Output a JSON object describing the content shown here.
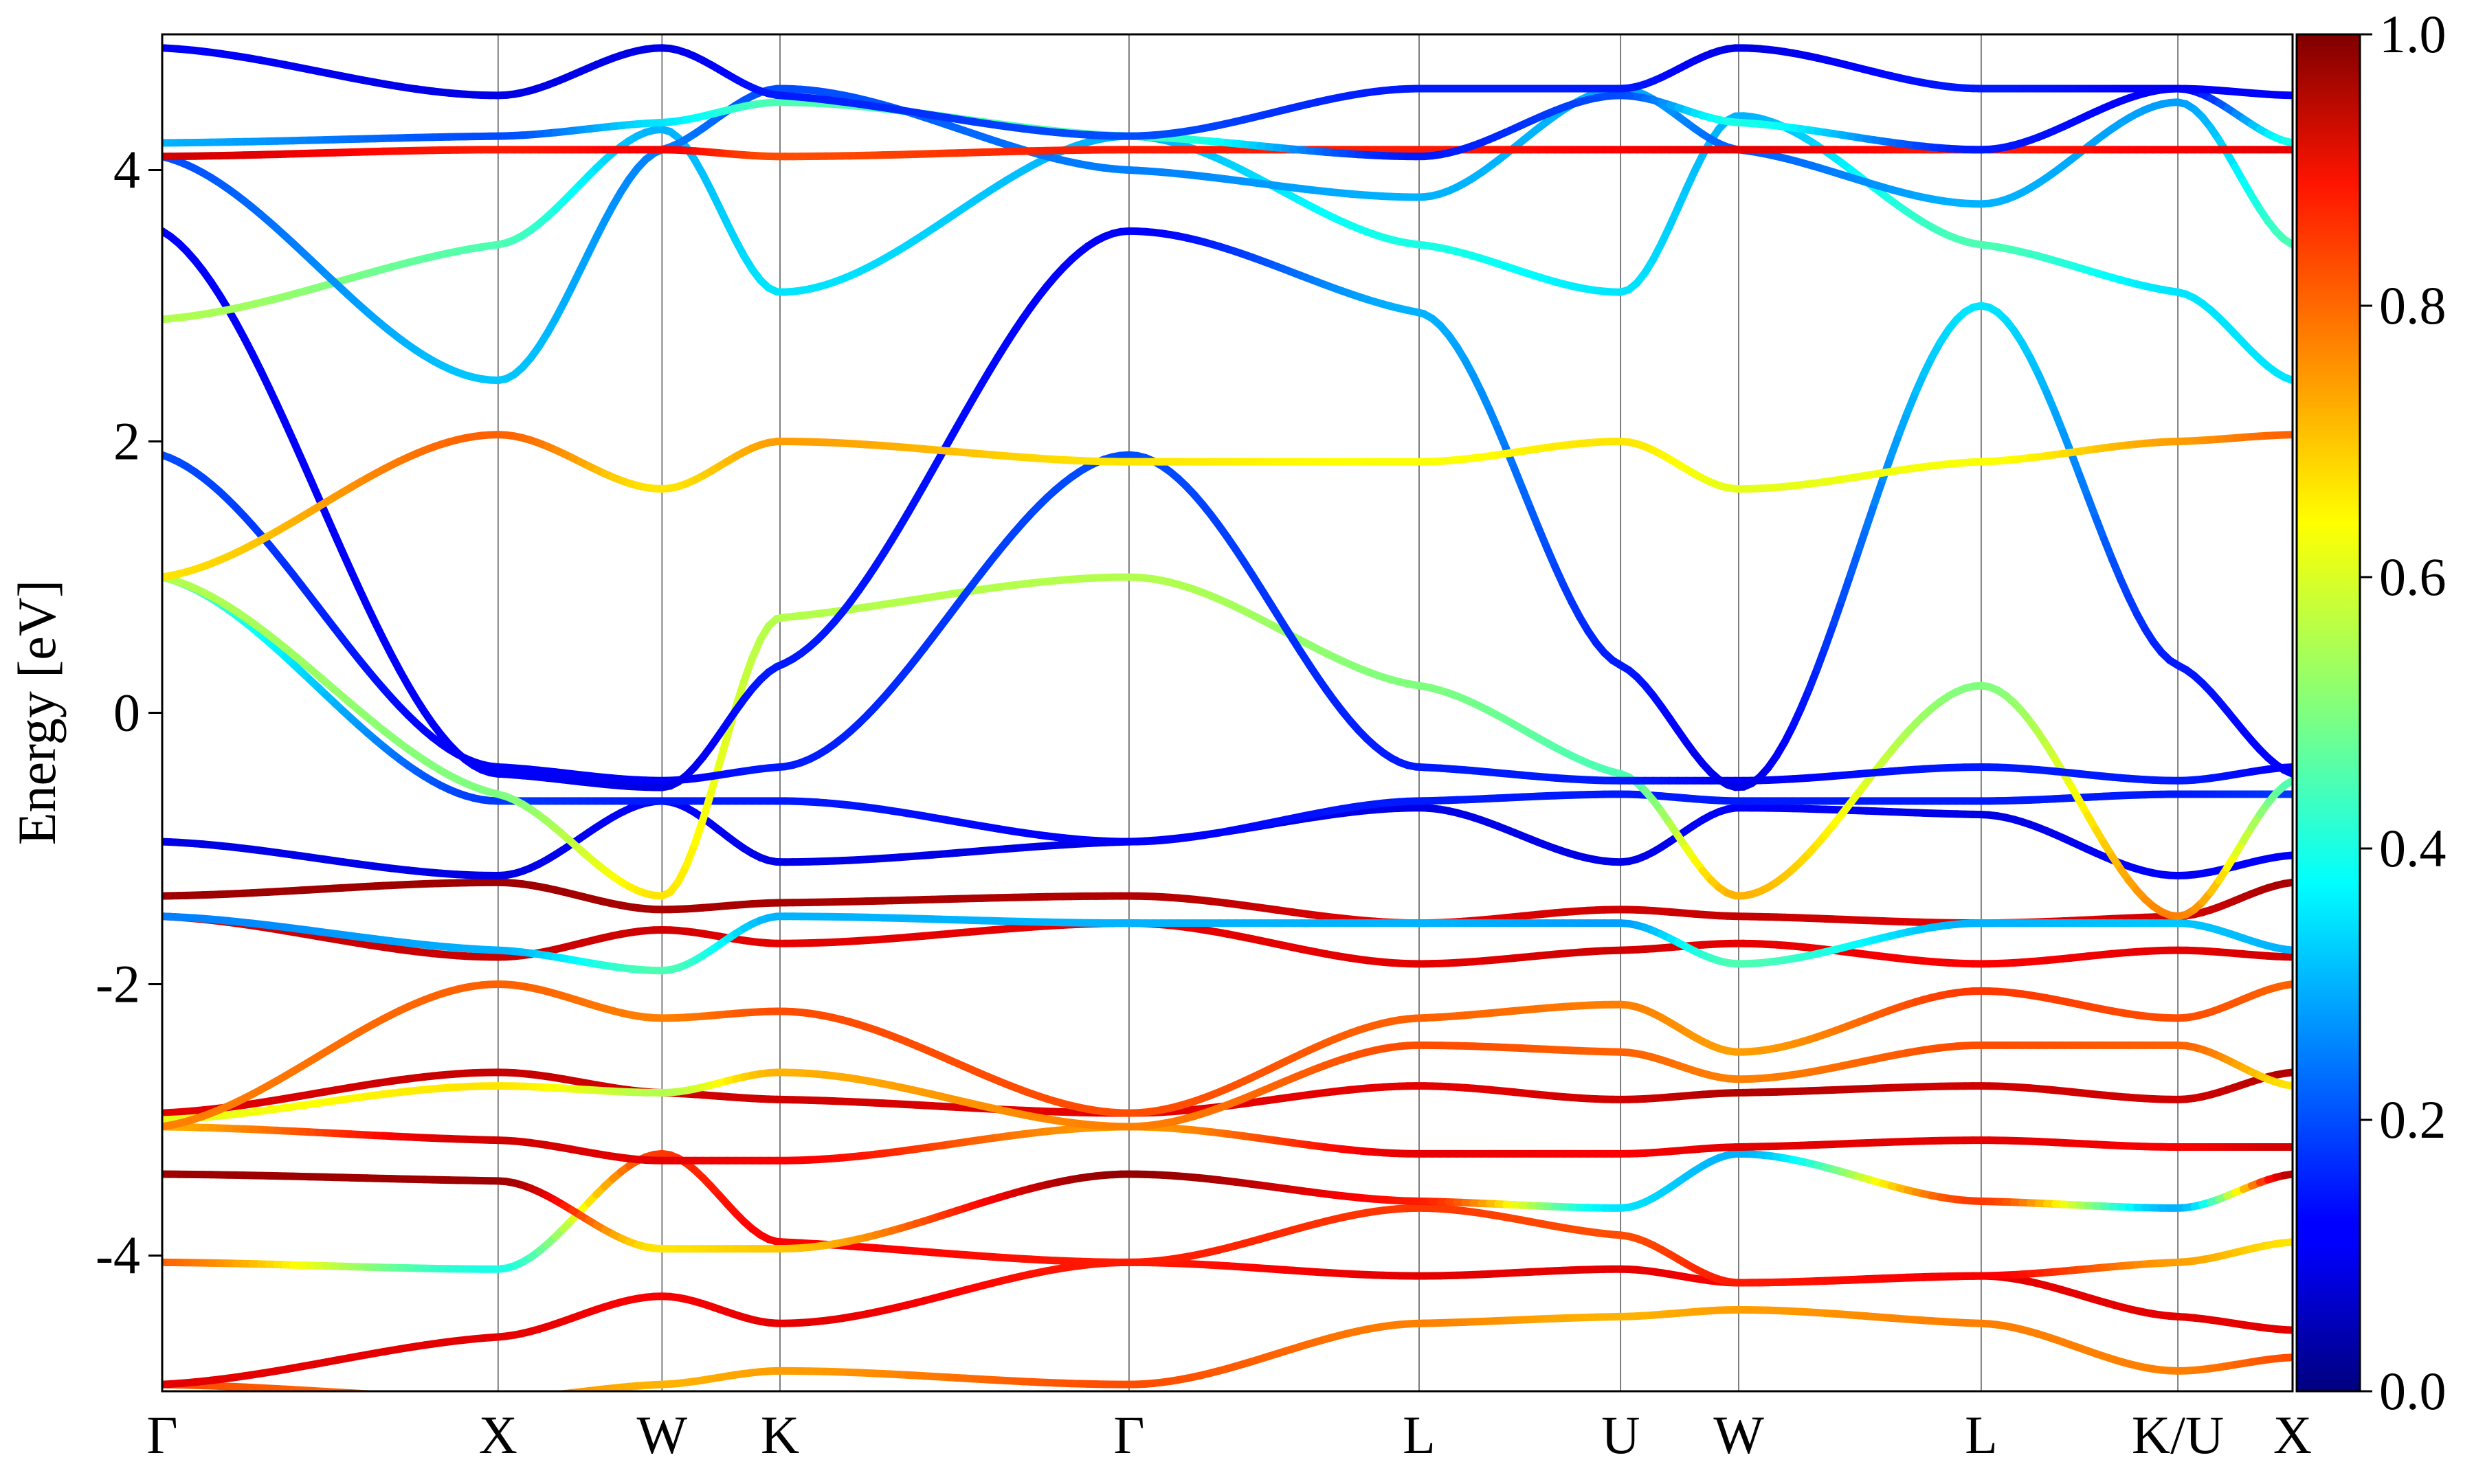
{
  "chart_data": {
    "type": "line",
    "title": "",
    "xlabel": "",
    "ylabel": "Energy [eV]",
    "ylim": [
      -5,
      5
    ],
    "yticks": [
      -4,
      -2,
      0,
      2,
      4
    ],
    "ytick_labels": [
      "-4",
      "-2",
      "0",
      "2",
      "4"
    ],
    "xlim": [
      0,
      13
    ],
    "high_symmetry_points": [
      {
        "label": "Γ",
        "x": 0
      },
      {
        "label": "X",
        "x": 2.05
      },
      {
        "label": "W",
        "x": 3.05
      },
      {
        "label": "K",
        "x": 3.77
      },
      {
        "label": "Γ",
        "x": 5.9
      },
      {
        "label": "L",
        "x": 7.67
      },
      {
        "label": "U",
        "x": 8.9
      },
      {
        "label": "W",
        "x": 9.62
      },
      {
        "label": "L",
        "x": 11.1
      },
      {
        "label": "K/U",
        "x": 12.3
      },
      {
        "label": "X",
        "x": 13.0
      }
    ],
    "colorbar": {
      "colormap": "jet",
      "range": [
        0,
        1
      ],
      "ticks": [
        0.0,
        0.2,
        0.4,
        0.6,
        0.8,
        1.0
      ],
      "tick_labels": [
        "0.0",
        "0.2",
        "0.4",
        "0.6",
        "0.8",
        "1.0"
      ]
    },
    "grid": false,
    "series": [
      {
        "x": [
          0,
          2.05,
          3.05,
          3.77,
          5.9,
          7.67,
          8.9,
          9.62,
          11.1,
          12.3,
          13.0
        ],
        "y": [
          -4.95,
          -5.05,
          -4.95,
          -4.85,
          -4.95,
          -4.5,
          -4.45,
          -4.4,
          -4.5,
          -4.85,
          -4.75
        ],
        "c": [
          0.8,
          0.75,
          0.7,
          0.72,
          0.8,
          0.75,
          0.7,
          0.72,
          0.75,
          0.75,
          0.8
        ]
      },
      {
        "x": [
          0,
          2.05,
          3.05,
          3.77,
          5.9,
          7.67,
          8.9,
          9.62,
          11.1,
          12.3,
          13.0
        ],
        "y": [
          -4.95,
          -4.6,
          -4.3,
          -4.5,
          -4.05,
          -4.15,
          -4.1,
          -4.2,
          -4.15,
          -4.45,
          -4.55
        ],
        "c": [
          0.9,
          0.9,
          0.88,
          0.9,
          0.85,
          0.9,
          0.9,
          0.88,
          0.9,
          0.9,
          0.9
        ]
      },
      {
        "x": [
          0,
          2.05,
          3.05,
          3.77,
          5.9,
          7.67,
          8.9,
          9.62,
          11.1,
          12.3,
          13.0
        ],
        "y": [
          -4.05,
          -4.1,
          -3.25,
          -3.9,
          -4.05,
          -3.65,
          -3.85,
          -4.2,
          -4.15,
          -4.05,
          -3.9
        ],
        "c": [
          0.78,
          0.4,
          0.82,
          0.88,
          0.85,
          0.82,
          0.8,
          0.85,
          0.88,
          0.72,
          0.65
        ]
      },
      {
        "x": [
          0,
          2.05,
          3.05,
          3.77,
          5.9,
          7.67,
          8.9,
          9.62,
          11.1,
          12.3,
          13.0
        ],
        "y": [
          -3.4,
          -3.45,
          -3.95,
          -3.95,
          -3.4,
          -3.6,
          -3.65,
          -3.25,
          -3.6,
          -3.65,
          -3.4
        ],
        "c": [
          0.97,
          0.97,
          0.65,
          0.68,
          0.98,
          0.85,
          0.35,
          0.3,
          0.82,
          0.3,
          0.95
        ]
      },
      {
        "x": [
          0,
          2.05,
          3.05,
          3.77,
          5.9,
          7.67,
          8.9,
          9.62,
          11.1,
          12.3,
          13.0
        ],
        "y": [
          -3.05,
          -3.15,
          -3.3,
          -3.3,
          -3.05,
          -3.25,
          -3.25,
          -3.2,
          -3.15,
          -3.2,
          -3.2
        ],
        "c": [
          0.7,
          0.92,
          0.9,
          0.88,
          0.72,
          0.9,
          0.88,
          0.9,
          0.9,
          0.88,
          0.92
        ]
      },
      {
        "x": [
          0,
          2.05,
          3.05,
          3.77,
          5.9,
          7.67,
          8.9,
          9.62,
          11.1,
          12.3,
          13.0
        ],
        "y": [
          -2.95,
          -2.65,
          -2.8,
          -2.85,
          -2.95,
          -2.75,
          -2.85,
          -2.8,
          -2.75,
          -2.85,
          -2.65
        ],
        "c": [
          0.9,
          0.93,
          0.92,
          0.92,
          0.9,
          0.9,
          0.92,
          0.95,
          0.92,
          0.92,
          0.95
        ]
      },
      {
        "x": [
          0,
          2.05,
          3.05,
          3.77,
          5.9,
          7.67,
          8.9,
          9.62,
          11.1,
          12.3,
          13.0
        ],
        "y": [
          -3.0,
          -2.75,
          -2.8,
          -2.65,
          -3.05,
          -2.45,
          -2.5,
          -2.7,
          -2.45,
          -2.45,
          -2.75
        ],
        "c": [
          0.6,
          0.65,
          0.55,
          0.7,
          0.75,
          0.8,
          0.78,
          0.75,
          0.8,
          0.78,
          0.65
        ]
      },
      {
        "x": [
          0,
          2.05,
          3.05,
          3.77,
          5.9,
          7.67,
          8.9,
          9.62,
          11.1,
          12.3,
          13.0
        ],
        "y": [
          -3.05,
          -2.0,
          -2.25,
          -2.2,
          -2.95,
          -2.25,
          -2.15,
          -2.5,
          -2.05,
          -2.25,
          -2.0
        ],
        "c": [
          0.75,
          0.78,
          0.75,
          0.8,
          0.8,
          0.78,
          0.75,
          0.72,
          0.82,
          0.8,
          0.78
        ]
      },
      {
        "x": [
          0,
          2.05,
          3.05,
          3.77,
          5.9,
          7.67,
          8.9,
          9.62,
          11.1,
          12.3,
          13.0
        ],
        "y": [
          -1.5,
          -1.8,
          -1.6,
          -1.7,
          -1.55,
          -1.85,
          -1.75,
          -1.7,
          -1.85,
          -1.75,
          -1.8
        ],
        "c": [
          0.92,
          0.93,
          0.92,
          0.9,
          0.9,
          0.9,
          0.92,
          0.9,
          0.88,
          0.9,
          0.92
        ]
      },
      {
        "x": [
          0,
          2.05,
          3.05,
          3.77,
          5.9,
          7.67,
          8.9,
          9.62,
          11.1,
          12.3,
          13.0
        ],
        "y": [
          -1.35,
          -1.25,
          -1.45,
          -1.4,
          -1.35,
          -1.55,
          -1.45,
          -1.5,
          -1.55,
          -1.5,
          -1.25
        ],
        "c": [
          0.97,
          0.97,
          0.96,
          0.96,
          0.95,
          0.9,
          0.92,
          0.93,
          0.9,
          0.92,
          0.96
        ]
      },
      {
        "x": [
          0,
          2.05,
          3.05,
          3.77,
          5.9,
          7.67,
          8.9,
          9.62,
          11.1,
          12.3,
          13.0
        ],
        "y": [
          -1.5,
          -1.75,
          -1.9,
          -1.5,
          -1.55,
          -1.55,
          -1.55,
          -1.85,
          -1.55,
          -1.55,
          -1.75
        ],
        "c": [
          0.25,
          0.3,
          0.45,
          0.3,
          0.3,
          0.3,
          0.28,
          0.45,
          0.3,
          0.32,
          0.3
        ]
      },
      {
        "x": [
          0,
          2.05,
          3.05,
          3.77,
          5.9,
          7.67,
          8.9,
          9.62,
          11.1,
          12.3,
          13.0
        ],
        "y": [
          -0.95,
          -1.2,
          -0.65,
          -1.1,
          -0.95,
          -0.7,
          -1.1,
          -0.7,
          -0.75,
          -1.2,
          -1.05
        ],
        "c": [
          0.1,
          0.1,
          0.12,
          0.1,
          0.1,
          0.1,
          0.1,
          0.12,
          0.1,
          0.12,
          0.12
        ]
      },
      {
        "x": [
          0,
          2.05,
          3.05,
          3.77,
          5.9,
          7.67,
          8.9,
          9.62,
          11.1,
          12.3,
          13.0
        ],
        "y": [
          1.0,
          -0.65,
          -0.65,
          -0.65,
          -0.95,
          -0.65,
          -0.6,
          -0.65,
          -0.65,
          -0.6,
          -0.6
        ],
        "c": [
          0.45,
          0.18,
          0.15,
          0.15,
          0.12,
          0.15,
          0.15,
          0.15,
          0.15,
          0.15,
          0.18
        ]
      },
      {
        "x": [
          0,
          2.05,
          3.05,
          3.77,
          5.9,
          7.67,
          8.9,
          9.62,
          11.1,
          12.3,
          13.0
        ],
        "y": [
          1.0,
          -0.6,
          -1.35,
          0.7,
          1.0,
          0.2,
          -0.45,
          -1.35,
          0.2,
          -1.5,
          -0.5
        ],
        "c": [
          0.55,
          0.5,
          0.65,
          0.55,
          0.55,
          0.5,
          0.45,
          0.7,
          0.5,
          0.75,
          0.45
        ]
      },
      {
        "x": [
          0,
          2.05,
          3.05,
          3.77,
          5.9,
          7.67,
          8.9,
          9.62,
          11.1,
          12.3,
          13.0
        ],
        "y": [
          1.9,
          -0.4,
          -0.5,
          -0.4,
          1.9,
          -0.4,
          -0.5,
          -0.5,
          -0.4,
          -0.5,
          -0.4
        ],
        "c": [
          0.2,
          0.12,
          0.12,
          0.15,
          0.2,
          0.15,
          0.15,
          0.12,
          0.15,
          0.15,
          0.12
        ]
      },
      {
        "x": [
          0,
          2.05,
          3.05,
          3.77,
          5.9,
          7.67,
          8.9,
          9.62,
          11.1,
          12.3,
          13.0
        ],
        "y": [
          3.55,
          -0.45,
          -0.55,
          0.35,
          3.55,
          2.95,
          0.35,
          -0.55,
          3.0,
          0.35,
          -0.45
        ],
        "c": [
          0.12,
          0.12,
          0.1,
          0.15,
          0.12,
          0.3,
          0.15,
          0.1,
          0.35,
          0.15,
          0.12
        ]
      },
      {
        "x": [
          0,
          2.05,
          3.05,
          3.77,
          5.9,
          7.67,
          8.9,
          9.62,
          11.1,
          12.3,
          13.0
        ],
        "y": [
          1.0,
          2.05,
          1.65,
          2.0,
          1.85,
          1.85,
          2.0,
          1.65,
          1.85,
          2.0,
          2.05
        ],
        "c": [
          0.65,
          0.78,
          0.65,
          0.72,
          0.65,
          0.62,
          0.65,
          0.6,
          0.62,
          0.72,
          0.78
        ]
      },
      {
        "x": [
          0,
          2.05,
          3.05,
          3.77,
          5.9,
          7.67,
          8.9,
          9.62,
          11.1,
          12.3,
          13.0
        ],
        "y": [
          2.9,
          3.45,
          4.3,
          3.1,
          4.25,
          3.45,
          3.1,
          4.4,
          3.45,
          3.1,
          2.45
        ],
        "c": [
          0.55,
          0.45,
          0.3,
          0.35,
          0.3,
          0.4,
          0.35,
          0.3,
          0.45,
          0.35,
          0.35
        ]
      },
      {
        "x": [
          0,
          2.05,
          3.05,
          3.77,
          5.9,
          7.67,
          8.9,
          9.62,
          11.1,
          12.3,
          13.0
        ],
        "y": [
          4.1,
          2.45,
          4.15,
          4.6,
          4.0,
          3.8,
          4.6,
          4.15,
          3.75,
          4.5,
          3.45
        ],
        "c": [
          0.2,
          0.32,
          0.25,
          0.2,
          0.25,
          0.3,
          0.3,
          0.22,
          0.3,
          0.28,
          0.45
        ]
      },
      {
        "x": [
          0,
          2.05,
          3.05,
          3.77,
          5.9,
          7.67,
          8.9,
          9.62,
          11.1,
          12.3,
          13.0
        ],
        "y": [
          4.1,
          4.15,
          4.15,
          4.1,
          4.15,
          4.15,
          4.15,
          4.15,
          4.15,
          4.15,
          4.15
        ],
        "c": [
          0.92,
          0.85,
          0.88,
          0.8,
          0.85,
          0.85,
          0.88,
          0.9,
          0.85,
          0.88,
          0.9
        ]
      },
      {
        "x": [
          0,
          2.05,
          3.05,
          3.77,
          5.9,
          7.67,
          8.9,
          9.62,
          11.1,
          12.3,
          13.0
        ],
        "y": [
          4.2,
          4.25,
          4.35,
          4.5,
          4.25,
          4.1,
          4.55,
          4.35,
          4.15,
          4.6,
          4.2
        ],
        "c": [
          0.3,
          0.2,
          0.35,
          0.45,
          0.45,
          0.15,
          0.2,
          0.4,
          0.15,
          0.12,
          0.4
        ]
      },
      {
        "x": [
          0,
          2.05,
          3.05,
          3.77,
          5.9,
          7.67,
          8.9,
          9.62,
          11.1,
          12.3,
          13.0
        ],
        "y": [
          4.9,
          4.55,
          4.9,
          4.55,
          4.25,
          4.6,
          4.6,
          4.9,
          4.6,
          4.6,
          4.55
        ],
        "c": [
          0.12,
          0.1,
          0.1,
          0.15,
          0.2,
          0.15,
          0.15,
          0.1,
          0.15,
          0.12,
          0.12
        ]
      }
    ]
  }
}
